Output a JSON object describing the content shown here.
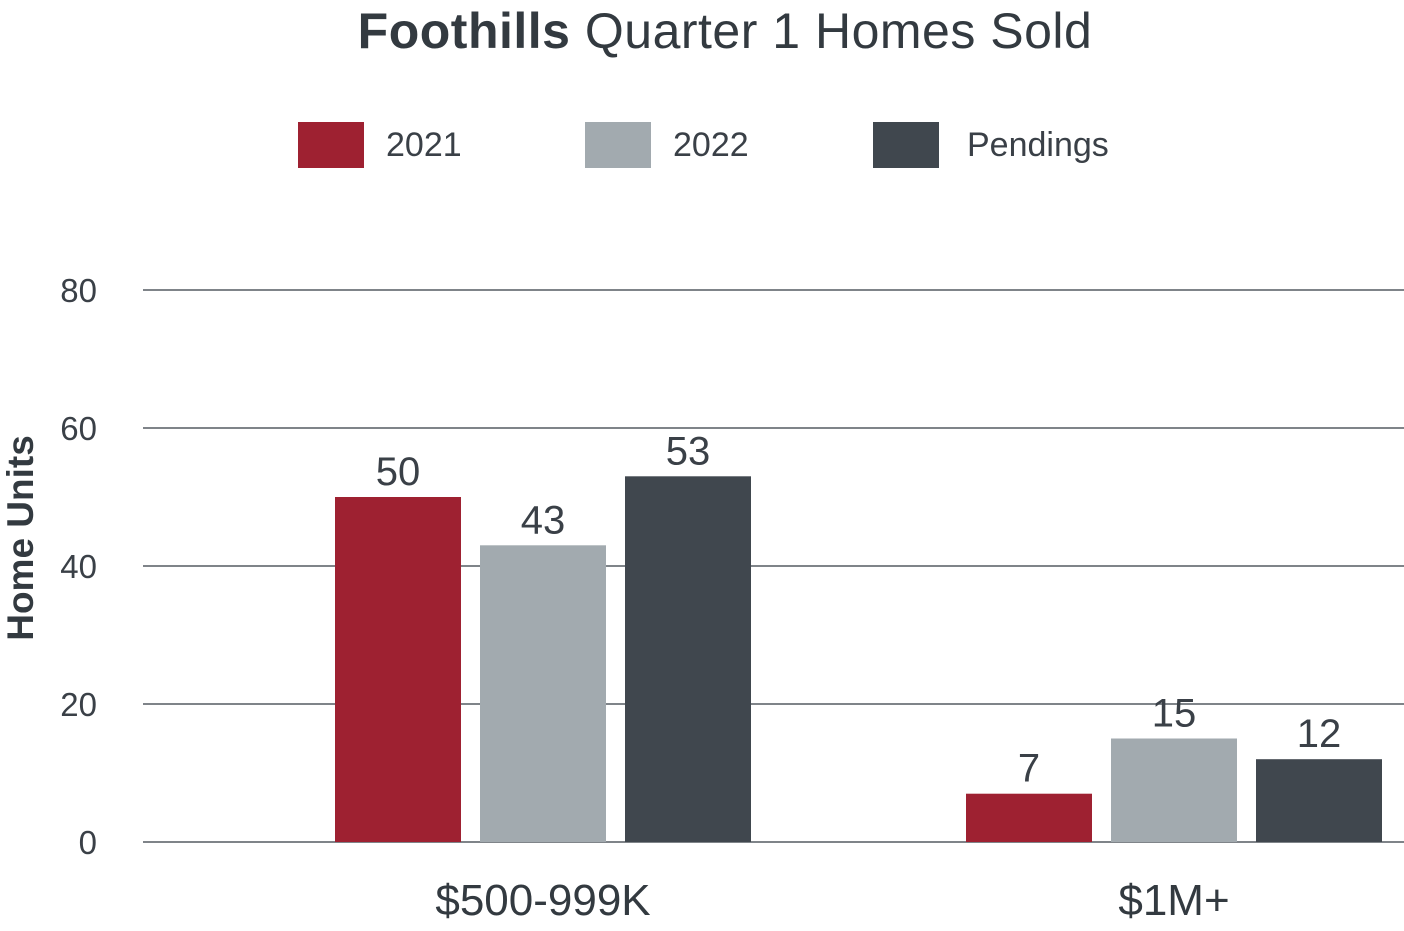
{
  "chart_data": {
    "type": "bar",
    "title_bold": "Foothills",
    "title_rest": " Quarter 1 Homes Sold",
    "ylabel": "Home Units",
    "xlabel": "",
    "categories": [
      "$500-999K",
      "$1M+"
    ],
    "series": [
      {
        "name": "2021",
        "values": [
          50,
          7
        ],
        "color": "#9e2131"
      },
      {
        "name": "2022",
        "values": [
          43,
          15
        ],
        "color": "#a2aaaf"
      },
      {
        "name": "Pendings",
        "values": [
          53,
          12
        ],
        "color": "#40474e"
      }
    ],
    "ylim": [
      0,
      80
    ],
    "yticks": [
      "0",
      "20",
      "40",
      "60",
      "80"
    ],
    "grid": true,
    "legend_position": "top"
  }
}
